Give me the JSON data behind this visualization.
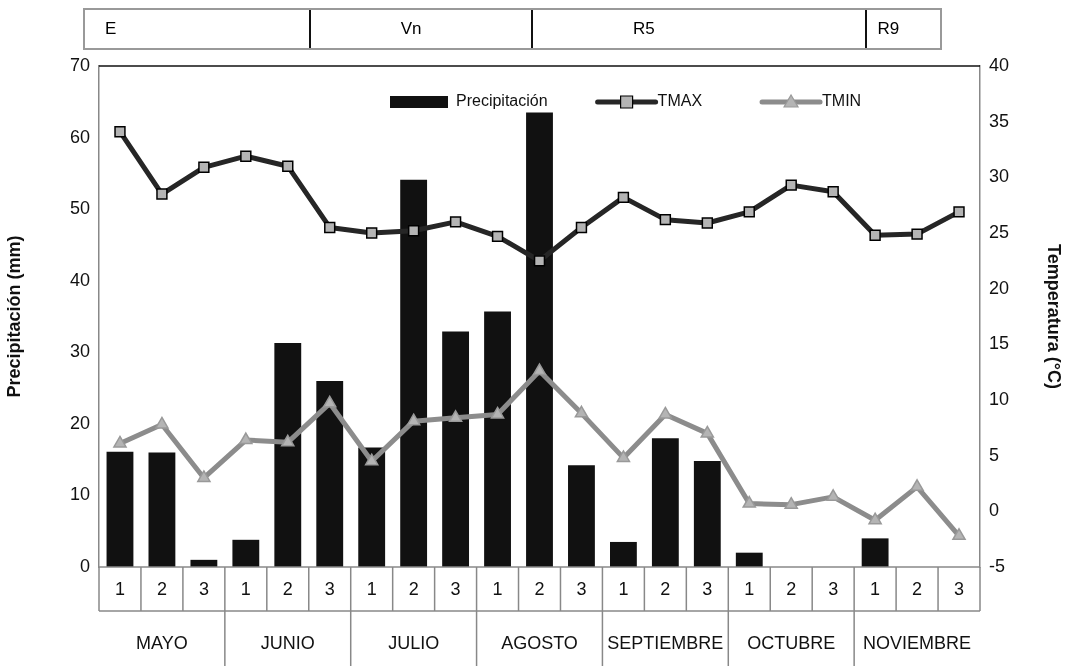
{
  "chart_data": {
    "type": "bar",
    "ylabel": "Precipitación (mm)",
    "y2label": "Temperatura (°C)",
    "categories": [
      "1",
      "2",
      "3",
      "1",
      "2",
      "3",
      "1",
      "2",
      "3",
      "1",
      "2",
      "3",
      "1",
      "2",
      "3",
      "1",
      "2",
      "3",
      "1",
      "2",
      "3"
    ],
    "series": [
      {
        "name": "Precipitación",
        "color": "#111111",
        "values": [
          16.1,
          16.0,
          1.0,
          3.8,
          31.3,
          26.0,
          16.7,
          54.1,
          32.9,
          35.7,
          63.5,
          14.2,
          3.5,
          18.0,
          14.8,
          2.0,
          0,
          0,
          4.0,
          0,
          0
        ]
      },
      {
        "name": "TMAX",
        "type": "line",
        "axis": "y2",
        "color": "#262626",
        "marker": "square",
        "values": [
          34.1,
          28.5,
          30.9,
          31.9,
          31.0,
          25.5,
          25.0,
          25.2,
          26.0,
          24.7,
          22.5,
          25.5,
          28.2,
          26.2,
          25.9,
          26.9,
          29.3,
          28.7,
          24.8,
          24.9,
          26.9
        ]
      },
      {
        "name": "TMIN",
        "type": "line",
        "axis": "y2",
        "color": "#8c8c8c",
        "marker": "triangle",
        "values": [
          6.1,
          7.8,
          3.0,
          6.4,
          6.2,
          9.7,
          4.5,
          8.1,
          8.4,
          8.7,
          12.6,
          8.8,
          4.8,
          8.7,
          7.0,
          0.7,
          0.6,
          1.3,
          -0.8,
          2.2,
          -2.2
        ]
      }
    ],
    "ylim": [
      0,
      70
    ],
    "yticks": [
      0,
      10,
      20,
      30,
      40,
      50,
      60,
      70
    ],
    "y2lim": [
      -5,
      40
    ],
    "y2ticks": [
      -5,
      0,
      5,
      10,
      15,
      20,
      25,
      30,
      35,
      40
    ],
    "grid": false,
    "legend": "top right",
    "annotations": [
      "E",
      "Vn",
      "R5",
      "R9",
      "MAYO",
      "JUNIO",
      "JULIO",
      "AGOSTO",
      "SEPTIEMBRE",
      "OCTUBRE",
      "NOVIEMBRE"
    ]
  }
}
